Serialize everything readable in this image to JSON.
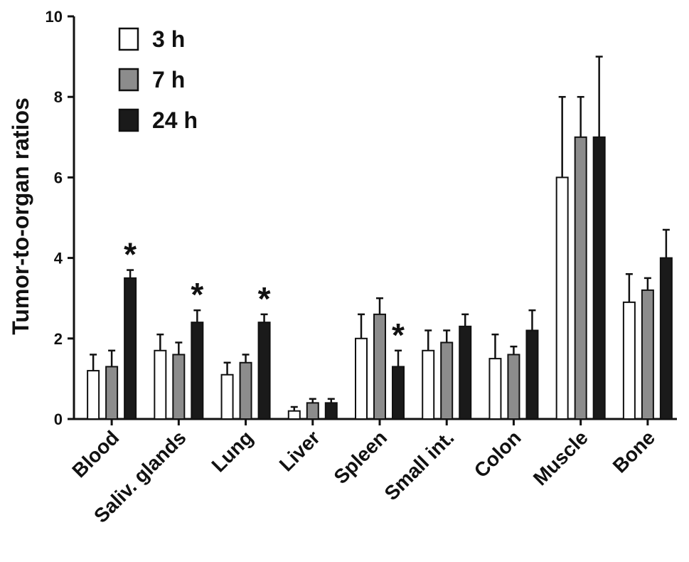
{
  "chart_data": {
    "type": "bar",
    "ylabel": "Tumor-to-organ ratios",
    "ylim": [
      0,
      10
    ],
    "yticks": [
      0,
      2,
      4,
      6,
      8,
      10
    ],
    "categories": [
      "Blood",
      "Saliv. glands",
      "Lung",
      "Liver",
      "Spleen",
      "Small int.",
      "Colon",
      "Muscle",
      "Bone"
    ],
    "series": [
      {
        "name": "3 h",
        "color": "#ffffff",
        "values": [
          1.2,
          1.7,
          1.1,
          0.2,
          2.0,
          1.7,
          1.5,
          6.0,
          2.9
        ],
        "errors": [
          0.4,
          0.4,
          0.3,
          0.1,
          0.6,
          0.5,
          0.6,
          2.0,
          0.7
        ]
      },
      {
        "name": "7 h",
        "color": "#8c8c8c",
        "values": [
          1.3,
          1.6,
          1.4,
          0.4,
          2.6,
          1.9,
          1.6,
          7.0,
          3.2
        ],
        "errors": [
          0.4,
          0.3,
          0.2,
          0.1,
          0.4,
          0.3,
          0.2,
          1.0,
          0.3
        ]
      },
      {
        "name": "24 h",
        "color": "#1a1a1a",
        "values": [
          3.5,
          2.4,
          2.4,
          0.4,
          1.3,
          2.3,
          2.2,
          7.0,
          4.0
        ],
        "errors": [
          0.2,
          0.3,
          0.2,
          0.1,
          0.4,
          0.3,
          0.5,
          2.0,
          0.7
        ]
      }
    ],
    "significance": [
      {
        "category": "Blood",
        "series": "24 h",
        "label": "*"
      },
      {
        "category": "Saliv. glands",
        "series": "24 h",
        "label": "*"
      },
      {
        "category": "Lung",
        "series": "24 h",
        "label": "*"
      },
      {
        "category": "Spleen",
        "series": "24 h",
        "label": "*"
      }
    ],
    "legend_position": "top-left",
    "grid": false
  }
}
